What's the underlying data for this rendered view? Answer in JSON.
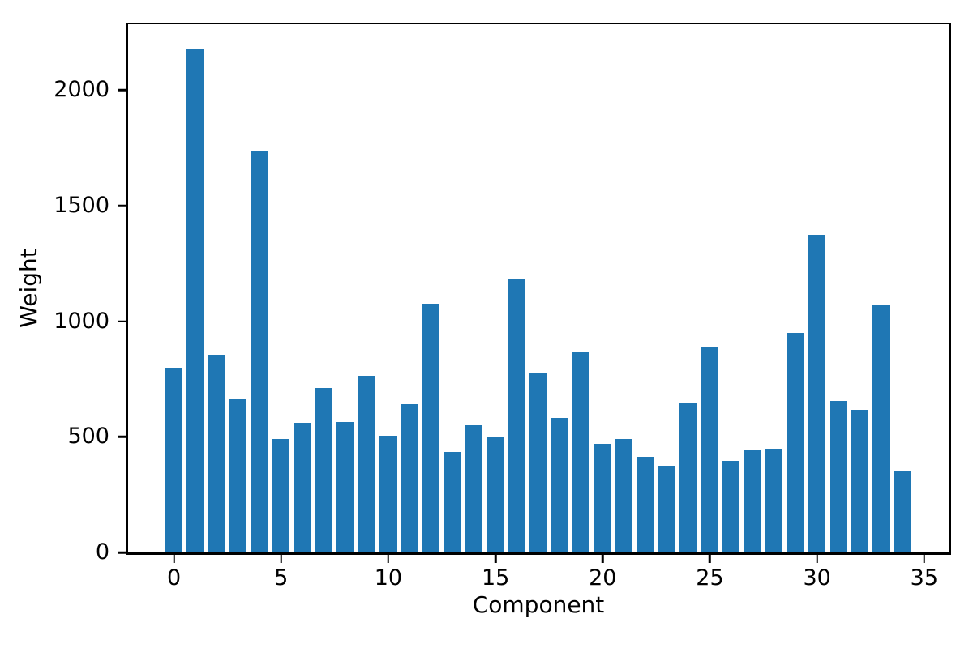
{
  "figure": {
    "background_color": "#ffffff",
    "text_color": "#000000",
    "spine_color": "#000000"
  },
  "chart_data": {
    "type": "bar",
    "title": "",
    "xlabel": "Component",
    "ylabel": "Weight",
    "x": [
      0,
      1,
      2,
      3,
      4,
      5,
      6,
      7,
      8,
      9,
      10,
      11,
      12,
      13,
      14,
      15,
      16,
      17,
      18,
      19,
      20,
      21,
      22,
      23,
      24,
      25,
      26,
      27,
      28,
      29,
      30,
      31,
      32,
      33,
      34
    ],
    "values": [
      800,
      2175,
      855,
      665,
      1735,
      490,
      560,
      710,
      565,
      765,
      505,
      640,
      1075,
      435,
      550,
      500,
      1185,
      775,
      580,
      865,
      470,
      490,
      415,
      375,
      645,
      885,
      395,
      445,
      450,
      950,
      1375,
      655,
      615,
      1070,
      350
    ],
    "bar_color": "#1f77b4",
    "bar_width": 0.8,
    "xticks": [
      0,
      5,
      10,
      15,
      20,
      25,
      30,
      35
    ],
    "yticks": [
      0,
      500,
      1000,
      1500,
      2000
    ],
    "xlim": [
      -2.14,
      36.14
    ],
    "ylim": [
      0,
      2284
    ],
    "grid": false,
    "legend": null
  }
}
